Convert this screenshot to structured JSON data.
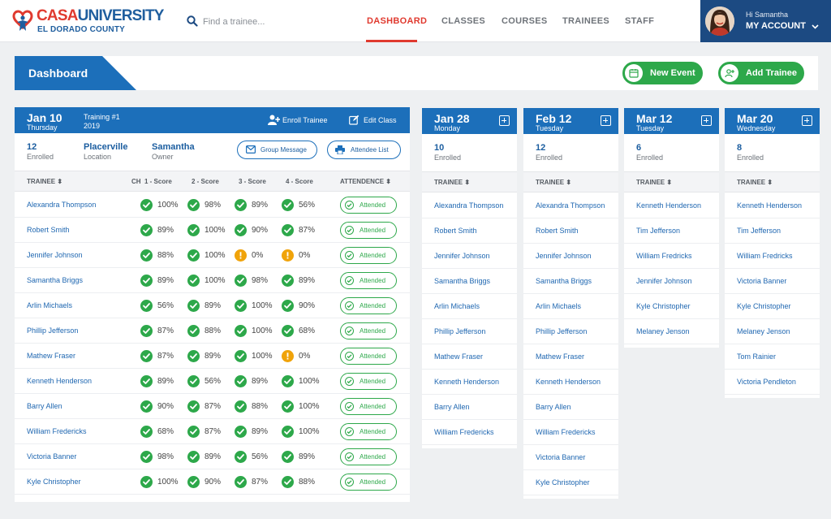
{
  "brand": {
    "name_red": "CASA",
    "name_blue": "UNIVERSITY",
    "county": "EL DORADO COUNTY"
  },
  "search": {
    "placeholder": "Find a trainee..."
  },
  "nav": {
    "items": [
      "DASHBOARD",
      "CLASSES",
      "COURSES",
      "TRAINEES",
      "STAFF"
    ],
    "active": "DASHBOARD"
  },
  "account": {
    "greeting": "Hi Samantha",
    "label": "MY ACCOUNT"
  },
  "dashboard": {
    "title": "Dashboard",
    "new_event": "New Event",
    "add_trainee": "Add Trainee"
  },
  "colors": {
    "primary_blue": "#1c6fba",
    "navy": "#1c4a82",
    "accent_red": "#e03a2f",
    "success_green": "#2da84a",
    "warning_orange": "#f0a30a"
  },
  "main_class": {
    "date": "Jan 10",
    "day": "Thursday",
    "training": "Training #1",
    "year": "2019",
    "enroll_label": "Enroll Trainee",
    "edit_label": "Edit Class",
    "enrolled_count": "12",
    "enrolled_label": "Enrolled",
    "location": "Placerville",
    "location_label": "Location",
    "owner": "Samantha",
    "owner_label": "Owner",
    "group_message": "Group Message",
    "attendee_list": "Attendee List",
    "columns": {
      "trainee": "TRAINEE",
      "ch": "CH",
      "s1": "1 - Score",
      "s2": "2 - Score",
      "s3": "3 - Score",
      "s4": "4 - Score",
      "attendance": "ATTENDENCE"
    },
    "rows": [
      {
        "name": "Alexandra Thompson",
        "s1": "100%",
        "s2": "98%",
        "s3": "89%",
        "s4": "56%",
        "status": "Attended"
      },
      {
        "name": "Robert Smith",
        "s1": "89%",
        "s2": "100%",
        "s3": "90%",
        "s4": "87%",
        "status": "Attended"
      },
      {
        "name": "Jennifer Johnson",
        "s1": "88%",
        "s2": "100%",
        "s3": "0%",
        "s4": "0%",
        "status": "Attended"
      },
      {
        "name": "Samantha Briggs",
        "s1": "89%",
        "s2": "100%",
        "s3": "98%",
        "s4": "89%",
        "status": "Attended"
      },
      {
        "name": "Arlin Michaels",
        "s1": "56%",
        "s2": "89%",
        "s3": "100%",
        "s4": "90%",
        "status": "Attended"
      },
      {
        "name": "Phillip Jefferson",
        "s1": "87%",
        "s2": "88%",
        "s3": "100%",
        "s4": "68%",
        "status": "Attended"
      },
      {
        "name": "Mathew Fraser",
        "s1": "87%",
        "s2": "89%",
        "s3": "100%",
        "s4": "0%",
        "status": "Attended"
      },
      {
        "name": "Kenneth Henderson",
        "s1": "89%",
        "s2": "56%",
        "s3": "89%",
        "s4": "100%",
        "status": "Attended"
      },
      {
        "name": "Barry Allen",
        "s1": "90%",
        "s2": "87%",
        "s3": "88%",
        "s4": "100%",
        "status": "Attended"
      },
      {
        "name": "William Fredericks",
        "s1": "68%",
        "s2": "87%",
        "s3": "89%",
        "s4": "100%",
        "status": "Attended"
      },
      {
        "name": "Victoria Banner",
        "s1": "98%",
        "s2": "89%",
        "s3": "56%",
        "s4": "89%",
        "status": "Attended"
      },
      {
        "name": "Kyle Christopher",
        "s1": "100%",
        "s2": "90%",
        "s3": "87%",
        "s4": "88%",
        "status": "Attended"
      }
    ]
  },
  "side_classes": [
    {
      "date": "Jan 28",
      "day": "Monday",
      "count": "10",
      "enrolled_label": "Enrolled",
      "col": "TRAINEE",
      "trainees": [
        "Alexandra Thompson",
        "Robert Smith",
        "Jennifer Johnson",
        "Samantha Briggs",
        "Arlin Michaels",
        "Phillip Jefferson",
        "Mathew Fraser",
        "Kenneth Henderson",
        "Barry Allen",
        "William Fredericks"
      ]
    },
    {
      "date": "Feb 12",
      "day": "Tuesday",
      "count": "12",
      "enrolled_label": "Enrolled",
      "col": "TRAINEE",
      "trainees": [
        "Alexandra Thompson",
        "Robert Smith",
        "Jennifer Johnson",
        "Samantha Briggs",
        "Arlin Michaels",
        "Phillip Jefferson",
        "Mathew Fraser",
        "Kenneth Henderson",
        "Barry Allen",
        "William Fredericks",
        "Victoria Banner",
        "Kyle Christopher"
      ]
    },
    {
      "date": "Mar 12",
      "day": "Tuesday",
      "count": "6",
      "enrolled_label": "Enrolled",
      "col": "TRAINEE",
      "trainees": [
        "Kenneth Henderson",
        "Tim Jefferson",
        "William Fredricks",
        "Jennifer Johnson",
        "Kyle Christopher",
        "Melaney Jenson"
      ]
    },
    {
      "date": "Mar 20",
      "day": "Wednesday",
      "count": "8",
      "enrolled_label": "Enrolled",
      "col": "TRAINEE",
      "trainees": [
        "Kenneth Henderson",
        "Tim Jefferson",
        "William Fredricks",
        "Victoria Banner",
        "Kyle Christopher",
        "Melaney Jenson",
        "Tom Rainier",
        "Victoria Pendleton"
      ]
    }
  ]
}
